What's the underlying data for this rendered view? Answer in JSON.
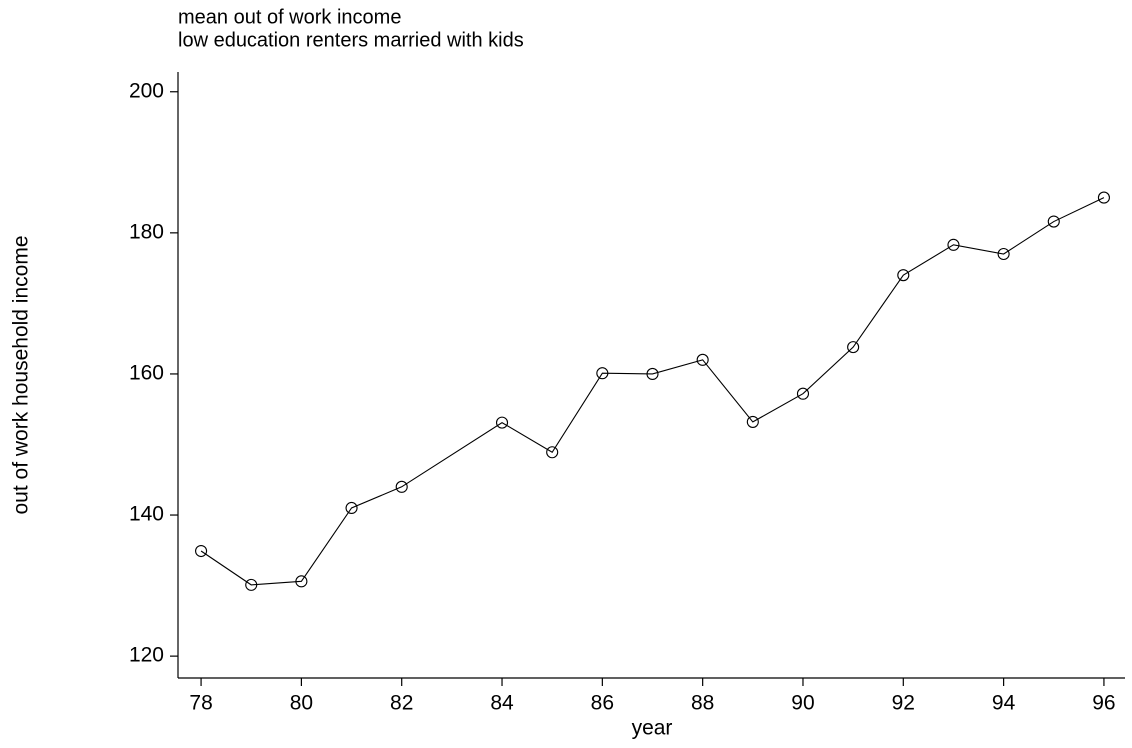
{
  "chart_data": {
    "type": "line",
    "title": "mean out of work income",
    "subtitle": "low education renters married with kids",
    "x_label": "year",
    "y_label": "out of work household income",
    "x": [
      78,
      79,
      80,
      81,
      82,
      84,
      85,
      86,
      87,
      88,
      89,
      90,
      91,
      92,
      93,
      94,
      95,
      96
    ],
    "series": [
      {
        "name": "mean out of work income",
        "color": "#000000",
        "values": [
          134.9,
          130.1,
          130.6,
          141.0,
          144.0,
          153.1,
          148.9,
          160.1,
          160.0,
          162.0,
          153.2,
          157.2,
          163.8,
          174.0,
          178.3,
          177.0,
          181.6,
          185.0
        ]
      }
    ],
    "xlim": [
      77.54,
      96.42
    ],
    "ylim": [
      116.9,
      202.8
    ],
    "xticks": [
      78,
      80,
      82,
      84,
      86,
      88,
      90,
      92,
      94,
      96
    ],
    "yticks": [
      120,
      140,
      160,
      180,
      200
    ],
    "grid": false,
    "marker": "hollow-circle"
  }
}
